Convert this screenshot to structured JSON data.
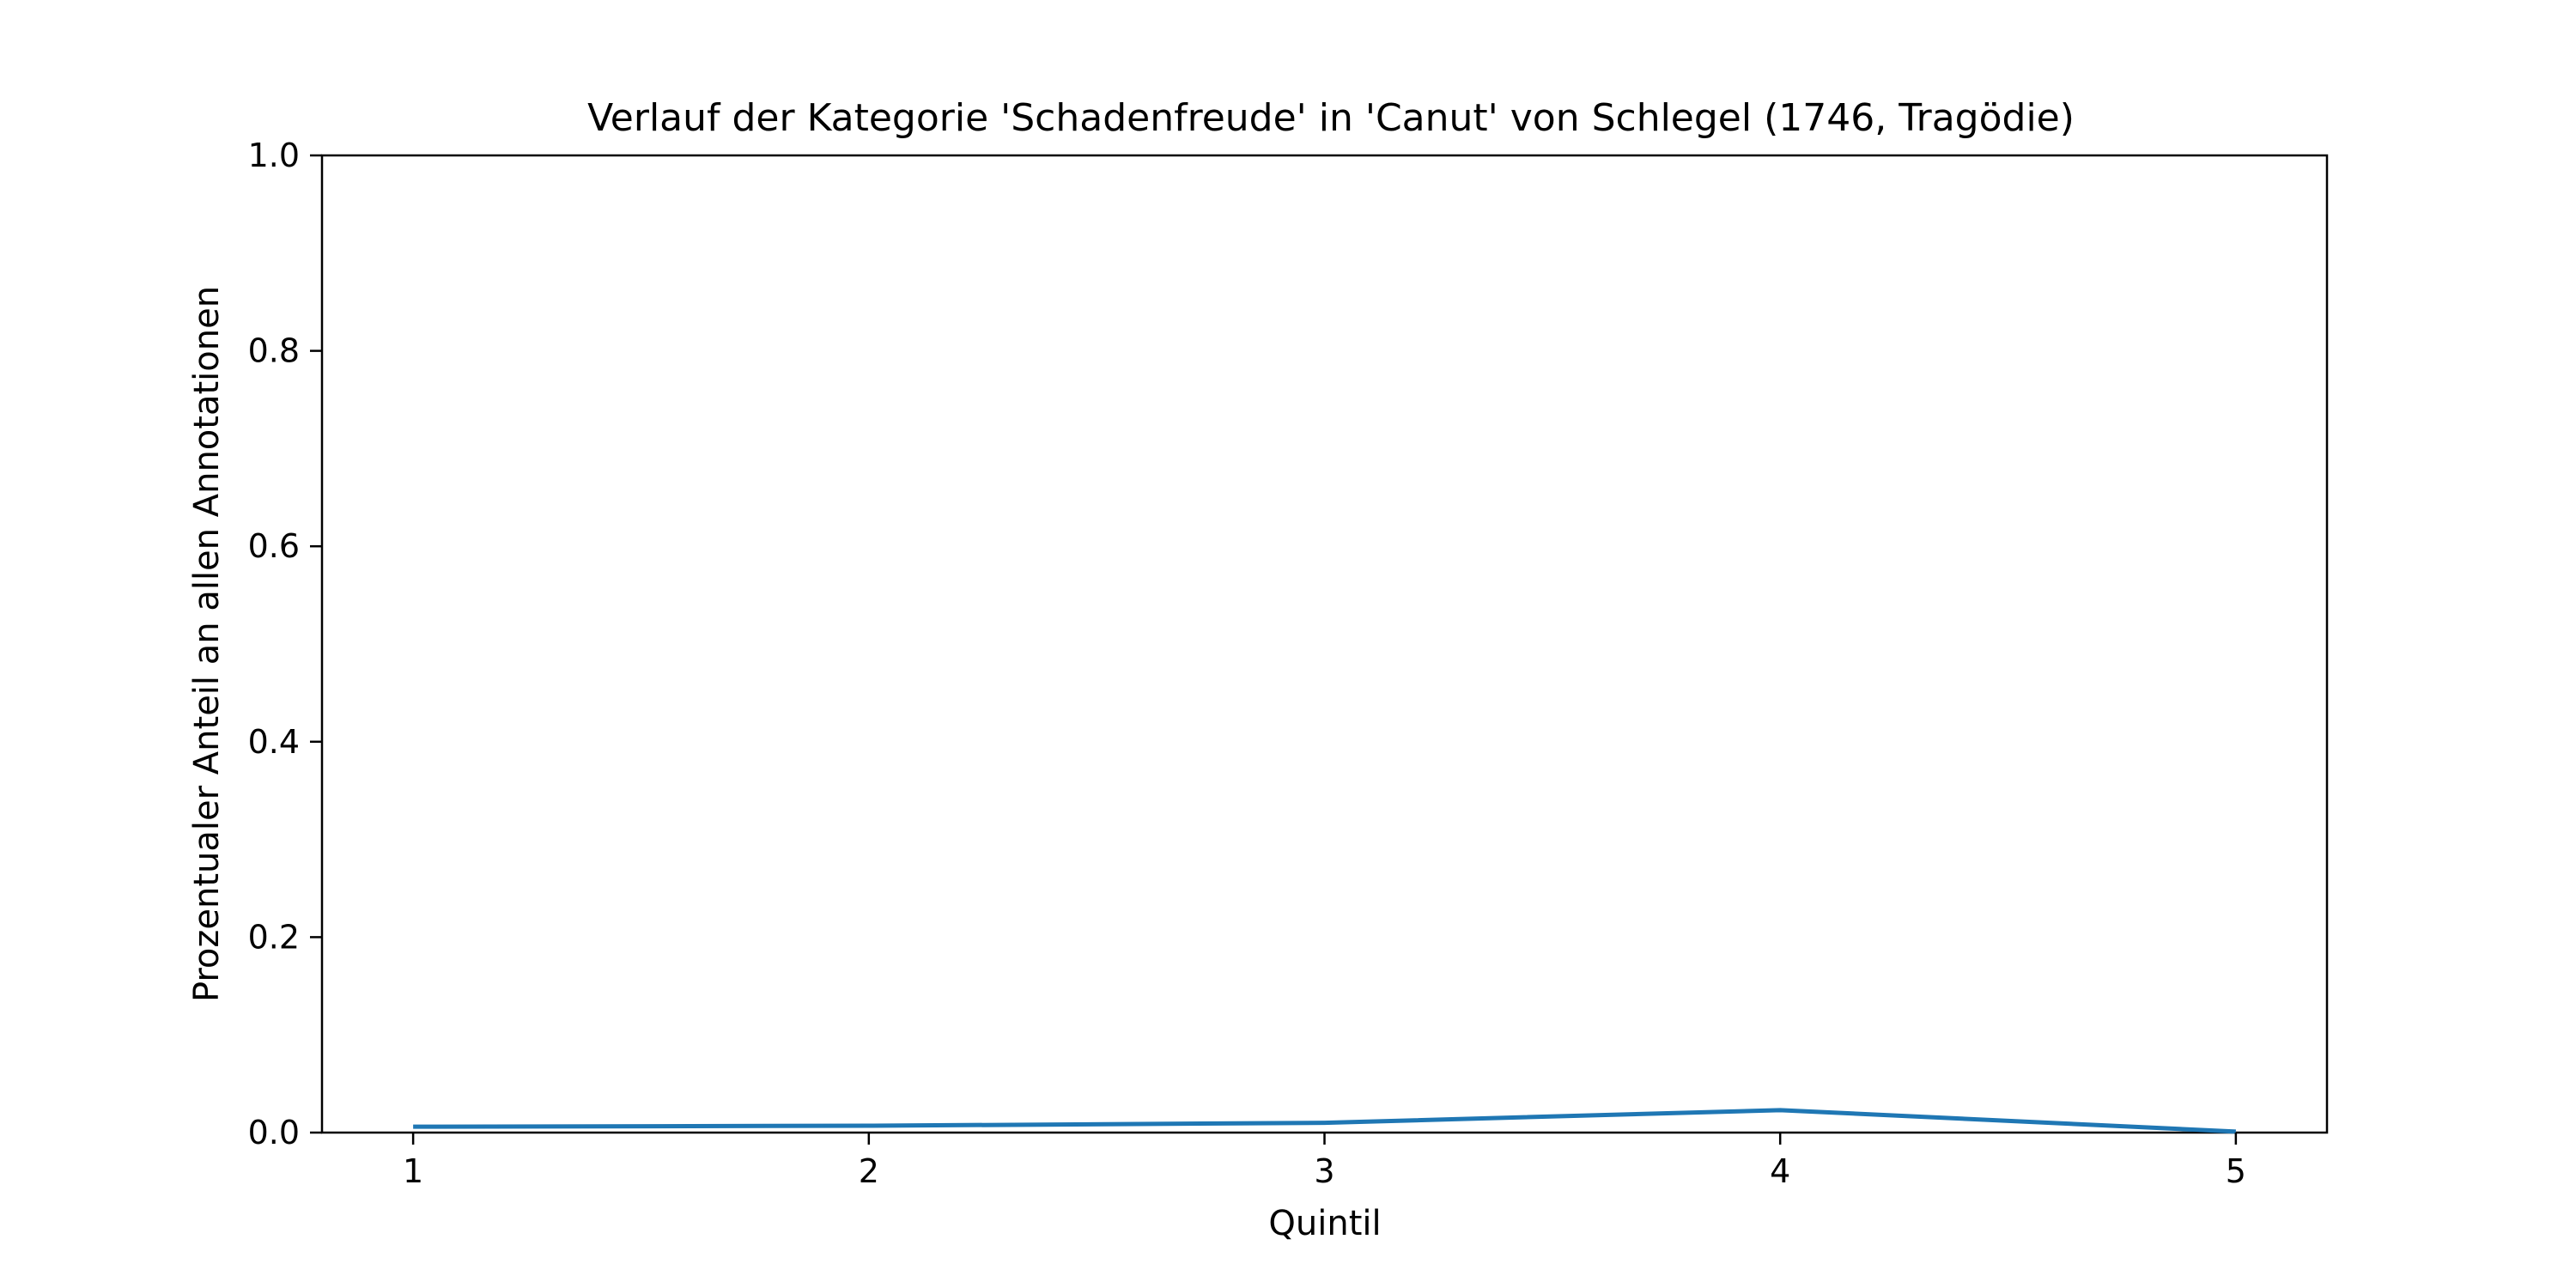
{
  "chart_data": {
    "type": "line",
    "title": "Verlauf der Kategorie 'Schadenfreude' in 'Canut' von Schlegel (1746, Tragödie)",
    "xlabel": "Quintil",
    "ylabel": "Prozentualer Anteil an allen Annotationen",
    "x": [
      1,
      2,
      3,
      4,
      5
    ],
    "x_tick_labels": [
      "1",
      "2",
      "3",
      "4",
      "5"
    ],
    "y_tick_labels": [
      "0.0",
      "0.2",
      "0.4",
      "0.6",
      "0.8",
      "1.0"
    ],
    "y_ticks": [
      0.0,
      0.2,
      0.4,
      0.6,
      0.8,
      1.0
    ],
    "xlim": [
      0.8,
      5.2
    ],
    "ylim": [
      0.0,
      1.0
    ],
    "grid": false,
    "series": [
      {
        "values": [
          0.006,
          0.007,
          0.01,
          0.023,
          0.001
        ],
        "color": "#1f77b4"
      }
    ]
  }
}
